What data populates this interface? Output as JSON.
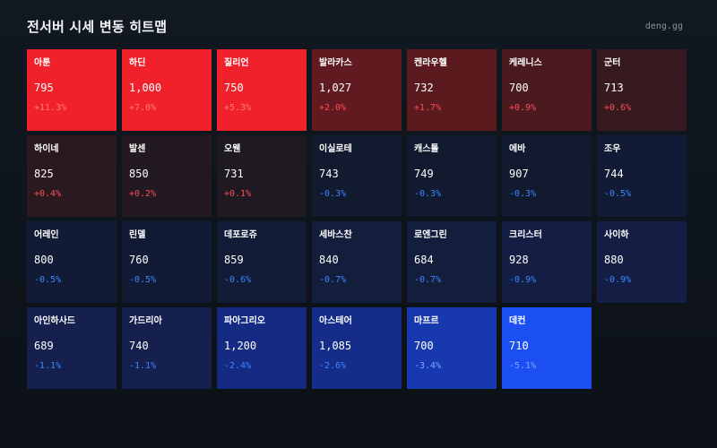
{
  "header": {
    "title": "전서버 시세 변동 히트맵",
    "site": "deng.gg"
  },
  "chart_data": {
    "type": "heatmap",
    "title": "전서버 시세 변동 히트맵",
    "items": [
      {
        "name": "아툰",
        "price": "795",
        "change": "+11.3%",
        "value": 11.3
      },
      {
        "name": "하딘",
        "price": "1,000",
        "change": "+7.0%",
        "value": 7.0
      },
      {
        "name": "질리언",
        "price": "750",
        "change": "+5.3%",
        "value": 5.3
      },
      {
        "name": "발라카스",
        "price": "1,027",
        "change": "+2.0%",
        "value": 2.0
      },
      {
        "name": "켄라우헬",
        "price": "732",
        "change": "+1.7%",
        "value": 1.7
      },
      {
        "name": "케레니스",
        "price": "700",
        "change": "+0.9%",
        "value": 0.9
      },
      {
        "name": "군터",
        "price": "713",
        "change": "+0.6%",
        "value": 0.6
      },
      {
        "name": "하이네",
        "price": "825",
        "change": "+0.4%",
        "value": 0.4
      },
      {
        "name": "발센",
        "price": "850",
        "change": "+0.2%",
        "value": 0.2
      },
      {
        "name": "오웬",
        "price": "731",
        "change": "+0.1%",
        "value": 0.1
      },
      {
        "name": "이실로테",
        "price": "743",
        "change": "-0.3%",
        "value": -0.3
      },
      {
        "name": "캐스톨",
        "price": "749",
        "change": "-0.3%",
        "value": -0.3
      },
      {
        "name": "에바",
        "price": "907",
        "change": "-0.3%",
        "value": -0.3
      },
      {
        "name": "조우",
        "price": "744",
        "change": "-0.5%",
        "value": -0.5
      },
      {
        "name": "어레인",
        "price": "800",
        "change": "-0.5%",
        "value": -0.5
      },
      {
        "name": "린델",
        "price": "760",
        "change": "-0.5%",
        "value": -0.5
      },
      {
        "name": "데포로쥬",
        "price": "859",
        "change": "-0.6%",
        "value": -0.6
      },
      {
        "name": "세바스찬",
        "price": "840",
        "change": "-0.7%",
        "value": -0.7
      },
      {
        "name": "로엔그린",
        "price": "684",
        "change": "-0.7%",
        "value": -0.7
      },
      {
        "name": "크리스터",
        "price": "928",
        "change": "-0.9%",
        "value": -0.9
      },
      {
        "name": "사이하",
        "price": "880",
        "change": "-0.9%",
        "value": -0.9
      },
      {
        "name": "아인하사드",
        "price": "689",
        "change": "-1.1%",
        "value": -1.1
      },
      {
        "name": "가드리아",
        "price": "740",
        "change": "-1.1%",
        "value": -1.1
      },
      {
        "name": "파아그리오",
        "price": "1,200",
        "change": "-2.4%",
        "value": -2.4
      },
      {
        "name": "아스테어",
        "price": "1,085",
        "change": "-2.6%",
        "value": -2.6
      },
      {
        "name": "마프르",
        "price": "700",
        "change": "-3.4%",
        "value": -3.4
      },
      {
        "name": "데컨",
        "price": "710",
        "change": "-5.1%",
        "value": -5.1
      }
    ]
  },
  "colors": {
    "up_cells": {
      "11.3": "#f0212b",
      "7.0": "#f0212b",
      "5.3": "#f0212b",
      "2.0": "#611a1f",
      "1.7": "#5a1a1e",
      "0.9": "#4a1a1e",
      "0.6": "#361a1f",
      "0.4": "#2a1a1f",
      "0.2": "#221a20",
      "0.1": "#1f1a21"
    },
    "down_cells": {
      "-0.3": "#111a2f",
      "-0.5": "#121b35",
      "-0.6": "#121c37",
      "-0.7": "#131d3c",
      "-0.9": "#141e44",
      "-1.1": "#15204e",
      "-2.4": "#142a83",
      "-2.6": "#152c89",
      "-3.4": "#1838b0",
      "-5.1": "#1c4ff2"
    },
    "up_text_strong": "#ff7a7a",
    "up_text": "#ff4d57",
    "down_text": "#3a86ff",
    "down_text_strong": "#7aa6ff"
  }
}
